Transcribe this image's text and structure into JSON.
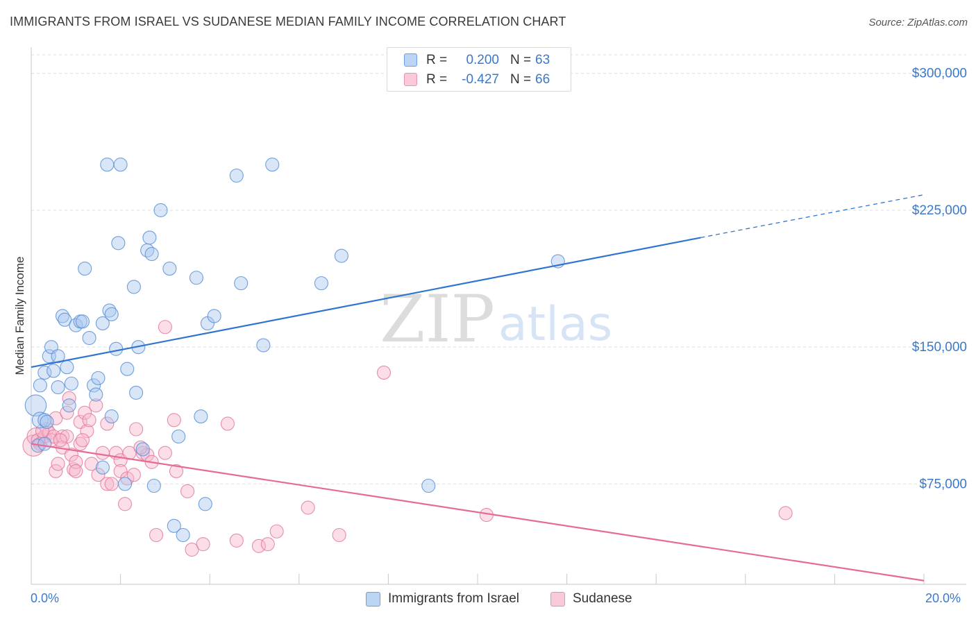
{
  "header": {
    "title": "IMMIGRANTS FROM ISRAEL VS SUDANESE MEDIAN FAMILY INCOME CORRELATION CHART",
    "source": "Source: ZipAtlas.com"
  },
  "watermark": {
    "zip": "ZIP",
    "atlas": "atlas"
  },
  "legend_top": {
    "rows": [
      {
        "r_label": "R =",
        "r_value": "0.200",
        "n_label": "N =",
        "n_value": "63"
      },
      {
        "r_label": "R =",
        "r_value": "-0.427",
        "n_label": "N =",
        "n_value": "66"
      }
    ]
  },
  "legend_bottom": {
    "items": [
      {
        "label": "Immigrants from Israel"
      },
      {
        "label": "Sudanese"
      }
    ]
  },
  "colors": {
    "blue_fill": "#a9c8f0",
    "blue_stroke": "#5b8fd6",
    "blue_line": "#2f74d0",
    "pink_fill": "#f6b6cb",
    "pink_stroke": "#e47a9f",
    "pink_line": "#e56a95",
    "grid": "#dddddd",
    "tick_text": "#3a78c9"
  },
  "chart_data": {
    "type": "scatter",
    "title": "IMMIGRANTS FROM ISRAEL VS SUDANESE MEDIAN FAMILY INCOME CORRELATION CHART",
    "xlabel": "",
    "ylabel": "Median Family Income",
    "xlim": [
      0,
      20
    ],
    "ylim": [
      20000,
      325000
    ],
    "x_tick_labels": [
      "0.0%",
      "20.0%"
    ],
    "y_ticks": [
      75000,
      150000,
      225000,
      300000
    ],
    "y_tick_labels": [
      "$75,000",
      "$150,000",
      "$225,000",
      "$300,000"
    ],
    "grid": true,
    "series": [
      {
        "name": "Immigrants from Israel",
        "r": 0.2,
        "n": 63,
        "trend": {
          "x0": 0,
          "y0": 139000,
          "x1": 15,
          "y1": 210000,
          "dashed_to_x": 20,
          "dashed_to_y": 233500
        },
        "points": [
          [
            0.1,
            118000,
            1.6
          ],
          [
            0.2,
            110000,
            1.2
          ],
          [
            0.3,
            110000,
            1
          ],
          [
            0.35,
            109000,
            1
          ],
          [
            0.15,
            96000,
            1
          ],
          [
            0.3,
            97000,
            1
          ],
          [
            0.2,
            129000,
            1
          ],
          [
            0.3,
            136000,
            1
          ],
          [
            0.4,
            145000,
            1
          ],
          [
            0.45,
            150000,
            1
          ],
          [
            0.5,
            137000,
            1
          ],
          [
            0.6,
            128000,
            1
          ],
          [
            0.6,
            145000,
            1
          ],
          [
            0.7,
            167000,
            1
          ],
          [
            0.75,
            165000,
            1
          ],
          [
            0.8,
            139000,
            1
          ],
          [
            0.85,
            118000,
            1
          ],
          [
            0.9,
            130000,
            1
          ],
          [
            1.0,
            162000,
            1
          ],
          [
            1.1,
            164000,
            1
          ],
          [
            1.15,
            164000,
            1
          ],
          [
            1.2,
            193000,
            1
          ],
          [
            1.3,
            155000,
            1
          ],
          [
            1.4,
            129000,
            1
          ],
          [
            1.45,
            124000,
            1
          ],
          [
            1.5,
            133000,
            1
          ],
          [
            1.6,
            84000,
            1
          ],
          [
            1.6,
            163000,
            1
          ],
          [
            1.7,
            250000,
            1
          ],
          [
            1.75,
            170000,
            1
          ],
          [
            1.8,
            168000,
            1
          ],
          [
            1.8,
            112000,
            1
          ],
          [
            1.9,
            149000,
            1
          ],
          [
            1.95,
            207000,
            1
          ],
          [
            2.0,
            250000,
            1
          ],
          [
            2.1,
            75000,
            1
          ],
          [
            2.15,
            138000,
            1
          ],
          [
            2.3,
            183000,
            1
          ],
          [
            2.35,
            125000,
            1
          ],
          [
            2.4,
            150000,
            1
          ],
          [
            2.5,
            94000,
            1
          ],
          [
            2.6,
            203000,
            1
          ],
          [
            2.65,
            210000,
            1
          ],
          [
            2.7,
            201000,
            1
          ],
          [
            2.75,
            74000,
            1
          ],
          [
            2.9,
            225000,
            1
          ],
          [
            3.1,
            193000,
            1
          ],
          [
            3.2,
            52000,
            1
          ],
          [
            3.3,
            101000,
            1
          ],
          [
            3.4,
            47000,
            1
          ],
          [
            3.7,
            188000,
            1
          ],
          [
            3.8,
            112000,
            1
          ],
          [
            3.9,
            64000,
            1
          ],
          [
            3.95,
            163000,
            1
          ],
          [
            4.1,
            167000,
            1
          ],
          [
            4.6,
            244000,
            1
          ],
          [
            4.7,
            185000,
            1
          ],
          [
            5.2,
            151000,
            1
          ],
          [
            5.4,
            250000,
            1
          ],
          [
            6.5,
            185000,
            1
          ],
          [
            6.95,
            200000,
            1
          ],
          [
            8.9,
            74000,
            1
          ],
          [
            11.8,
            197000,
            1
          ]
        ]
      },
      {
        "name": "Sudanese",
        "r": -0.427,
        "n": 66,
        "trend": {
          "x0": 0,
          "y0": 97000,
          "x1": 20,
          "y1": 22000
        },
        "points": [
          [
            0.05,
            96000,
            1.6
          ],
          [
            0.1,
            101000,
            1.3
          ],
          [
            0.15,
            99000,
            1
          ],
          [
            0.2,
            97000,
            1
          ],
          [
            0.3,
            101000,
            1
          ],
          [
            0.35,
            105000,
            1
          ],
          [
            0.4,
            103000,
            1
          ],
          [
            0.45,
            99000,
            1
          ],
          [
            0.5,
            101000,
            1
          ],
          [
            0.55,
            111000,
            1
          ],
          [
            0.55,
            82000,
            1
          ],
          [
            0.6,
            86000,
            1
          ],
          [
            0.7,
            101000,
            1
          ],
          [
            0.7,
            95000,
            1
          ],
          [
            0.8,
            101000,
            1
          ],
          [
            0.8,
            114000,
            1
          ],
          [
            0.85,
            122000,
            1
          ],
          [
            0.9,
            91000,
            1
          ],
          [
            0.95,
            83000,
            1
          ],
          [
            1.0,
            87000,
            1
          ],
          [
            1.0,
            82000,
            1
          ],
          [
            1.1,
            97000,
            1
          ],
          [
            1.1,
            109000,
            1
          ],
          [
            1.2,
            114000,
            1
          ],
          [
            1.25,
            104000,
            1
          ],
          [
            1.3,
            110000,
            1
          ],
          [
            1.35,
            86000,
            1
          ],
          [
            1.45,
            118000,
            1
          ],
          [
            1.5,
            80000,
            1
          ],
          [
            1.6,
            92000,
            1
          ],
          [
            1.7,
            108000,
            1
          ],
          [
            1.7,
            75000,
            1
          ],
          [
            1.8,
            75000,
            1
          ],
          [
            1.9,
            92000,
            1
          ],
          [
            2.0,
            88000,
            1
          ],
          [
            2.0,
            82000,
            1
          ],
          [
            2.1,
            64000,
            1
          ],
          [
            2.15,
            78000,
            1
          ],
          [
            2.2,
            92000,
            1
          ],
          [
            2.3,
            80000,
            1
          ],
          [
            2.35,
            105000,
            1
          ],
          [
            2.5,
            92000,
            1
          ],
          [
            2.6,
            91000,
            1
          ],
          [
            2.7,
            87000,
            1
          ],
          [
            2.8,
            47000,
            1
          ],
          [
            3.0,
            92000,
            1
          ],
          [
            3.0,
            161000,
            1
          ],
          [
            3.2,
            110000,
            1
          ],
          [
            3.25,
            82000,
            1
          ],
          [
            3.5,
            71000,
            1
          ],
          [
            3.6,
            39000,
            1
          ],
          [
            3.85,
            42000,
            1
          ],
          [
            4.4,
            108000,
            1
          ],
          [
            4.6,
            44000,
            1
          ],
          [
            5.1,
            41000,
            1
          ],
          [
            5.3,
            42000,
            1
          ],
          [
            5.5,
            49000,
            1
          ],
          [
            6.2,
            62000,
            1
          ],
          [
            6.9,
            47000,
            1
          ],
          [
            7.9,
            136000,
            1
          ],
          [
            10.2,
            58000,
            1
          ],
          [
            16.9,
            59000,
            1
          ],
          [
            0.25,
            104000,
            1
          ],
          [
            0.65,
            99000,
            1
          ],
          [
            1.15,
            99000,
            1
          ],
          [
            2.45,
            95000,
            1
          ]
        ]
      }
    ]
  }
}
